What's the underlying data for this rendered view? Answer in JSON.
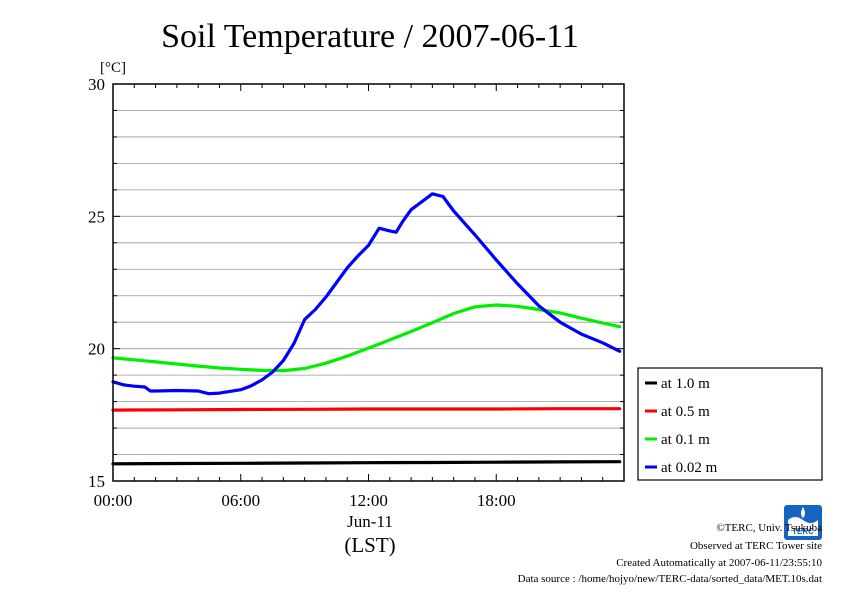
{
  "chart_data": {
    "type": "line",
    "title": "Soil Temperature / 2007-06-11",
    "ylabel": "[°C]",
    "xlabel": "(LST)",
    "date_label": "Jun-11",
    "ylim": [
      15,
      30
    ],
    "xlim": [
      0,
      24
    ],
    "yticks": [
      15,
      20,
      25,
      30
    ],
    "yminor_step": 1,
    "xticks": [
      {
        "x": 0,
        "label": "00:00"
      },
      {
        "x": 6,
        "label": "06:00"
      },
      {
        "x": 12,
        "label": "12:00"
      },
      {
        "x": 18,
        "label": "18:00"
      }
    ],
    "grid": true,
    "legend_position": "right",
    "series": [
      {
        "name": "at 1.0 m",
        "color": "#000000",
        "x": [
          0,
          3,
          6,
          9,
          12,
          15,
          18,
          21,
          23.8
        ],
        "y": [
          15.65,
          15.66,
          15.67,
          15.68,
          15.69,
          15.7,
          15.71,
          15.72,
          15.73
        ]
      },
      {
        "name": "at 0.5 m",
        "color": "#ff0000",
        "x": [
          0,
          3,
          6,
          9,
          12,
          15,
          18,
          21,
          23.8
        ],
        "y": [
          17.68,
          17.69,
          17.7,
          17.71,
          17.72,
          17.72,
          17.72,
          17.73,
          17.73
        ]
      },
      {
        "name": "at 0.1 m",
        "color": "#00ee00",
        "x": [
          0,
          1,
          2,
          3,
          4,
          5,
          6,
          7,
          8,
          9,
          10,
          11,
          12,
          13,
          14,
          15,
          16,
          17,
          18,
          19,
          20,
          21,
          22,
          23,
          23.8
        ],
        "y": [
          19.65,
          19.58,
          19.5,
          19.42,
          19.34,
          19.27,
          19.22,
          19.18,
          19.17,
          19.25,
          19.45,
          19.72,
          20.02,
          20.33,
          20.65,
          20.98,
          21.33,
          21.58,
          21.65,
          21.6,
          21.48,
          21.35,
          21.15,
          20.97,
          20.83
        ]
      },
      {
        "name": "at 0.02 m",
        "color": "#0000ff",
        "x": [
          0,
          0.5,
          1,
          1.5,
          1.75,
          2,
          3,
          4,
          4.5,
          5,
          6,
          6.5,
          7,
          7.5,
          8,
          8.5,
          9,
          9.5,
          10,
          10.5,
          11,
          11.5,
          12,
          12.5,
          13,
          13.3,
          13.6,
          14,
          14.5,
          15,
          15.5,
          16,
          17,
          18,
          19,
          20,
          21,
          22,
          23,
          23.8
        ],
        "y": [
          18.75,
          18.63,
          18.58,
          18.55,
          18.4,
          18.4,
          18.42,
          18.4,
          18.3,
          18.32,
          18.45,
          18.6,
          18.82,
          19.12,
          19.55,
          20.2,
          21.1,
          21.48,
          21.95,
          22.5,
          23.05,
          23.5,
          23.9,
          24.55,
          24.45,
          24.4,
          24.8,
          25.25,
          25.55,
          25.85,
          25.75,
          25.2,
          24.3,
          23.35,
          22.45,
          21.62,
          21.0,
          20.55,
          20.22,
          19.9
        ]
      }
    ]
  },
  "footer": {
    "copyright": "©TERC, Univ. Tsukuba",
    "observed": "Observed at TERC Tower site",
    "created": "Created Automatically at 2007-06-11/23:55:10",
    "source": "Data source : /home/hojyo/new/TERC-data/sorted_data/MET.10s.dat"
  },
  "logo": {
    "text": "TERC",
    "color": "#1565c0"
  }
}
